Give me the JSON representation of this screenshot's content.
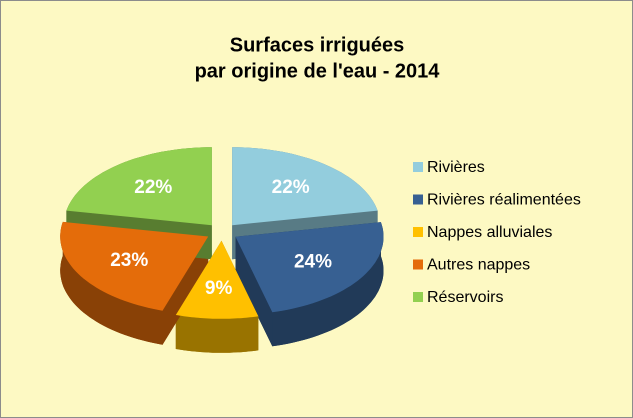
{
  "chart_data": {
    "type": "pie",
    "title": [
      "Surfaces irriguées",
      "par origine de l'eau - 2014"
    ],
    "categories": [
      "Rivières",
      "Rivières réalimentées",
      "Nappes alluviales",
      "Autres nappes",
      "Réservoirs"
    ],
    "values": [
      22,
      24,
      9,
      23,
      22
    ],
    "value_labels": [
      "22%",
      "24%",
      "9%",
      "23%",
      "22%"
    ],
    "colors": [
      "#93cddd",
      "#376092",
      "#ffc000",
      "#e46c0a",
      "#92d050"
    ],
    "legend": "right"
  }
}
